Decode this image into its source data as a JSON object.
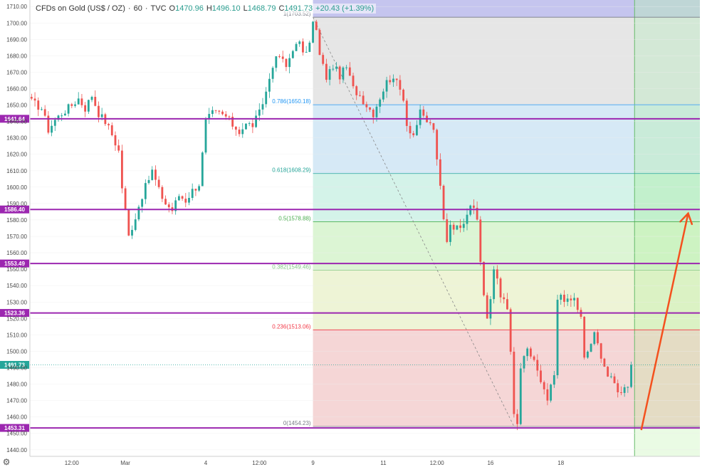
{
  "legend": {
    "symbol": "CFDs on Gold (US$ / OZ)",
    "sep1": "·",
    "interval": "60",
    "sep2": "·",
    "source": "TVC",
    "open_label": "O",
    "open": "1470.96",
    "high_label": "H",
    "high": "1496.10",
    "low_label": "L",
    "low": "1468.79",
    "close_label": "C",
    "close": "1491.73",
    "change": "+20.43 (+1.39%)"
  },
  "settings_icon": "⚙",
  "chart_data": {
    "type": "candlestick",
    "title": "CFDs on Gold (US$ / OZ) · 60 · TVC",
    "ylim": [
      1436,
      1714
    ],
    "y_ticks": [
      "1440.00",
      "1450.00",
      "1460.00",
      "1470.00",
      "1480.00",
      "1490.00",
      "1500.00",
      "1510.00",
      "1520.00",
      "1530.00",
      "1540.00",
      "1550.00",
      "1560.00",
      "1570.00",
      "1580.00",
      "1590.00",
      "1600.00",
      "1610.00",
      "1620.00",
      "1630.00",
      "1640.00",
      "1650.00",
      "1660.00",
      "1670.00",
      "1680.00",
      "1690.00",
      "1700.00",
      "1710.00"
    ],
    "y_tick_values": [
      1440,
      1450,
      1460,
      1470,
      1480,
      1490,
      1500,
      1510,
      1520,
      1530,
      1540,
      1550,
      1560,
      1570,
      1580,
      1590,
      1600,
      1610,
      1620,
      1630,
      1640,
      1650,
      1660,
      1670,
      1680,
      1690,
      1700,
      1710
    ],
    "x_ticks": [
      "12:00",
      "Mar",
      "4",
      "12:00",
      "9",
      "11",
      "12:00",
      "16",
      "18"
    ],
    "x_tick_bars": [
      12,
      28,
      52,
      68,
      84,
      105,
      121,
      137,
      158
    ],
    "total_bars": 200,
    "close_path": [
      [
        0,
        1652
      ],
      [
        3,
        1648
      ],
      [
        5,
        1635
      ],
      [
        7,
        1641
      ],
      [
        9,
        1645
      ],
      [
        12,
        1650
      ],
      [
        14,
        1654
      ],
      [
        16,
        1648
      ],
      [
        18,
        1656
      ],
      [
        20,
        1645
      ],
      [
        22,
        1640
      ],
      [
        24,
        1632
      ],
      [
        26,
        1622
      ],
      [
        27,
        1600
      ],
      [
        28,
        1585
      ],
      [
        29,
        1570
      ],
      [
        31,
        1582
      ],
      [
        33,
        1595
      ],
      [
        35,
        1605
      ],
      [
        36,
        1610
      ],
      [
        38,
        1598
      ],
      [
        40,
        1590
      ],
      [
        42,
        1586
      ],
      [
        44,
        1595
      ],
      [
        46,
        1592
      ],
      [
        48,
        1598
      ],
      [
        50,
        1602
      ],
      [
        51,
        1620
      ],
      [
        52,
        1640
      ],
      [
        54,
        1645
      ],
      [
        56,
        1645
      ],
      [
        58,
        1643
      ],
      [
        60,
        1638
      ],
      [
        62,
        1634
      ],
      [
        64,
        1638
      ],
      [
        66,
        1638
      ],
      [
        68,
        1645
      ],
      [
        70,
        1658
      ],
      [
        72,
        1675
      ],
      [
        74,
        1680
      ],
      [
        76,
        1673
      ],
      [
        78,
        1685
      ],
      [
        80,
        1687
      ],
      [
        82,
        1680
      ],
      [
        83,
        1690
      ],
      [
        84,
        1700
      ],
      [
        85,
        1695
      ],
      [
        86,
        1680
      ],
      [
        88,
        1667
      ],
      [
        90,
        1674
      ],
      [
        92,
        1668
      ],
      [
        94,
        1673
      ],
      [
        96,
        1660
      ],
      [
        98,
        1656
      ],
      [
        100,
        1650
      ],
      [
        102,
        1645
      ],
      [
        104,
        1655
      ],
      [
        106,
        1664
      ],
      [
        108,
        1668
      ],
      [
        109,
        1663
      ],
      [
        111,
        1655
      ],
      [
        112,
        1638
      ],
      [
        114,
        1632
      ],
      [
        116,
        1645
      ],
      [
        118,
        1640
      ],
      [
        120,
        1636
      ],
      [
        121,
        1615
      ],
      [
        122,
        1600
      ],
      [
        123,
        1580
      ],
      [
        124,
        1568
      ],
      [
        125,
        1578
      ],
      [
        127,
        1575
      ],
      [
        129,
        1580
      ],
      [
        131,
        1590
      ],
      [
        133,
        1580
      ],
      [
        134,
        1555
      ],
      [
        135,
        1535
      ],
      [
        136,
        1520
      ],
      [
        137,
        1530
      ],
      [
        138,
        1550
      ],
      [
        139,
        1545
      ],
      [
        140,
        1535
      ],
      [
        142,
        1525
      ],
      [
        143,
        1500
      ],
      [
        144,
        1460
      ],
      [
        145,
        1455
      ],
      [
        146,
        1490
      ],
      [
        148,
        1500
      ],
      [
        150,
        1495
      ],
      [
        152,
        1480
      ],
      [
        154,
        1470
      ],
      [
        156,
        1485
      ],
      [
        157,
        1530
      ],
      [
        158,
        1535
      ],
      [
        160,
        1530
      ],
      [
        162,
        1532
      ],
      [
        164,
        1520
      ],
      [
        165,
        1495
      ],
      [
        166,
        1500
      ],
      [
        168,
        1510
      ],
      [
        170,
        1498
      ],
      [
        172,
        1485
      ],
      [
        174,
        1480
      ],
      [
        176,
        1474
      ],
      [
        177,
        1480
      ],
      [
        178,
        1480
      ],
      [
        179,
        1491.73
      ]
    ],
    "fib_levels": [
      {
        "ratio": "1",
        "price": 1703.52,
        "label": "1(1703.52)",
        "color": "#787b86"
      },
      {
        "ratio": "0.786",
        "price": 1650.18,
        "label": "0.786(1650.18)",
        "color": "#2196f3"
      },
      {
        "ratio": "0.618",
        "price": 1608.29,
        "label": "0.618(1608.29)",
        "color": "#26a69a"
      },
      {
        "ratio": "0.5",
        "price": 1578.88,
        "label": "0.5(1578.88)",
        "color": "#4caf50"
      },
      {
        "ratio": "0.382",
        "price": 1549.46,
        "label": "0.382(1549.46)",
        "color": "#81c784"
      },
      {
        "ratio": "0.236",
        "price": 1513.06,
        "label": "0.236(1513.06)",
        "color": "#f23645"
      },
      {
        "ratio": "0",
        "price": 1454.23,
        "label": "0(1454.23)",
        "color": "#787b86"
      }
    ],
    "fib_zones": [
      {
        "from": 1703.52,
        "to": 1714,
        "fill": "#c5c5ef"
      },
      {
        "from": 1650.18,
        "to": 1703.52,
        "fill": "#e6e6e6"
      },
      {
        "from": 1608.29,
        "to": 1650.18,
        "fill": "#d6e9f6"
      },
      {
        "from": 1578.88,
        "to": 1608.29,
        "fill": "#d4f3e9"
      },
      {
        "from": 1549.46,
        "to": 1578.88,
        "fill": "#dcf5d4"
      },
      {
        "from": 1513.06,
        "to": 1549.46,
        "fill": "#eef4d6"
      },
      {
        "from": 1454.23,
        "to": 1513.06,
        "fill": "#f5d6d6"
      }
    ],
    "fib_start_bar": 84,
    "fib_end_bar": 200,
    "fib_split_bar": 180,
    "right_zones": [
      {
        "from": 1703.52,
        "to": 1714,
        "fill": "#bfd6d6"
      },
      {
        "from": 1650.18,
        "to": 1703.52,
        "fill": "#d3e8d6"
      },
      {
        "from": 1608.29,
        "to": 1650.18,
        "fill": "#c9ebd9"
      },
      {
        "from": 1578.88,
        "to": 1608.29,
        "fill": "#c2f0cc"
      },
      {
        "from": 1549.46,
        "to": 1578.88,
        "fill": "#cdf3c2"
      },
      {
        "from": 1513.06,
        "to": 1549.46,
        "fill": "#dbf2c4"
      },
      {
        "from": 1454.23,
        "to": 1513.06,
        "fill": "#e4dcc4"
      },
      {
        "from": 1436,
        "to": 1454.23,
        "fill": "#eafbe4"
      }
    ],
    "horizontal_levels": [
      {
        "price": 1641.64,
        "label": "1641.64"
      },
      {
        "price": 1586.4,
        "label": "1586.40"
      },
      {
        "price": 1553.49,
        "label": "1553.49"
      },
      {
        "price": 1523.36,
        "label": "1523.36"
      },
      {
        "price": 1453.31,
        "label": "1453.31"
      }
    ],
    "level_color": "#9c27b0",
    "current_price": {
      "price": 1491.73,
      "label": "1491.73",
      "color": "#26a69a"
    },
    "trend_line": {
      "from_bar": 84,
      "from_price": 1703.52,
      "to_bar": 144,
      "to_price": 1454.23
    },
    "arrow": {
      "from_bar": 182,
      "from_price": 1452,
      "to_bar": 196,
      "to_price": 1584,
      "color": "#f4511e"
    },
    "up_color": "#26a69a",
    "down_color": "#ef5350"
  }
}
